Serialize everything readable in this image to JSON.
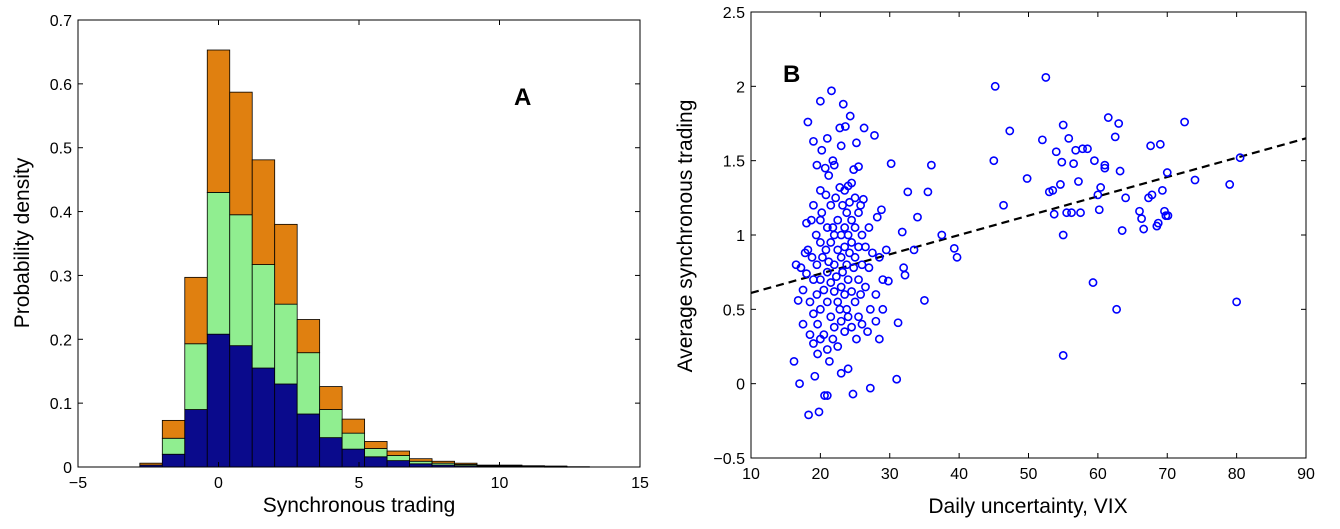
{
  "colors": {
    "bottom": "#0a0a8c",
    "middle": "#90ee90",
    "top": "#e08010",
    "scatter": "#0000ff",
    "fit_line": "#000000"
  },
  "chart_data": [
    {
      "type": "bar",
      "stacked": true,
      "panel_label": "A",
      "title": "",
      "xlabel": "Synchronous trading",
      "ylabel": "Probability density",
      "xlim": [
        -5,
        15
      ],
      "ylim": [
        0,
        0.7
      ],
      "xticks": [
        -5,
        0,
        5,
        10,
        15
      ],
      "yticks": [
        0,
        0.1,
        0.2,
        0.3,
        0.4,
        0.5,
        0.6,
        0.7
      ],
      "bar_width": 0.8,
      "grid": false,
      "x": [
        -2.4,
        -1.6,
        -0.8,
        0,
        0.8,
        1.6,
        2.4,
        3.2,
        4.0,
        4.8,
        5.6,
        6.4,
        7.2,
        8.0,
        8.8,
        9.6,
        10.4,
        11.2,
        12.0,
        12.8
      ],
      "series": [
        {
          "color_key": "bottom",
          "values": [
            0.003,
            0.02,
            0.09,
            0.208,
            0.19,
            0.155,
            0.13,
            0.083,
            0.046,
            0.028,
            0.016,
            0.01,
            0.005,
            0.003,
            0.002,
            0.001,
            0.001,
            0.001,
            0.0005,
            0.0005
          ]
        },
        {
          "color_key": "middle",
          "values": [
            0.0,
            0.025,
            0.103,
            0.222,
            0.205,
            0.162,
            0.125,
            0.096,
            0.044,
            0.025,
            0.013,
            0.008,
            0.004,
            0.003,
            0.002,
            0.001,
            0.001,
            0.0005,
            0.0005,
            0.0
          ]
        },
        {
          "color_key": "top",
          "values": [
            0.003,
            0.028,
            0.104,
            0.223,
            0.192,
            0.164,
            0.125,
            0.052,
            0.036,
            0.022,
            0.011,
            0.007,
            0.004,
            0.003,
            0.002,
            0.001,
            0.001,
            0.0005,
            0.0005,
            0.0
          ]
        }
      ]
    },
    {
      "type": "scatter",
      "panel_label": "B",
      "title": "",
      "xlabel": "Daily uncertainty, VIX",
      "ylabel": "Average synchronous trading",
      "xlim": [
        10,
        90
      ],
      "ylim": [
        -0.5,
        2.5
      ],
      "xticks": [
        10,
        20,
        30,
        40,
        50,
        60,
        70,
        80,
        90
      ],
      "yticks": [
        -0.5,
        0,
        0.5,
        1,
        1.5,
        2,
        2.5
      ],
      "grid": false,
      "fit_line": {
        "style": "dashed",
        "x": [
          10,
          90
        ],
        "y": [
          0.61,
          1.65
        ]
      },
      "points": [
        [
          16.2,
          0.15
        ],
        [
          16.5,
          0.8
        ],
        [
          16.8,
          0.56
        ],
        [
          17.0,
          0.0
        ],
        [
          17.2,
          0.78
        ],
        [
          17.5,
          0.63
        ],
        [
          17.5,
          0.4
        ],
        [
          17.8,
          0.88
        ],
        [
          18.0,
          1.08
        ],
        [
          18.0,
          0.74
        ],
        [
          18.2,
          1.76
        ],
        [
          18.2,
          0.9
        ],
        [
          18.3,
          -0.21
        ],
        [
          18.5,
          0.55
        ],
        [
          18.5,
          0.33
        ],
        [
          18.7,
          1.1
        ],
        [
          18.8,
          0.85
        ],
        [
          19.0,
          1.63
        ],
        [
          19.0,
          1.2
        ],
        [
          19.0,
          0.7
        ],
        [
          19.0,
          0.47
        ],
        [
          19.0,
          0.27
        ],
        [
          19.2,
          0.05
        ],
        [
          19.4,
          1.0
        ],
        [
          19.5,
          1.47
        ],
        [
          19.5,
          0.8
        ],
        [
          19.5,
          0.6
        ],
        [
          19.6,
          0.4
        ],
        [
          19.6,
          0.2
        ],
        [
          19.8,
          -0.19
        ],
        [
          20.0,
          1.9
        ],
        [
          20.0,
          1.3
        ],
        [
          20.0,
          1.1
        ],
        [
          20.0,
          0.95
        ],
        [
          20.0,
          0.7
        ],
        [
          20.0,
          0.5
        ],
        [
          20.0,
          0.3
        ],
        [
          20.2,
          1.57
        ],
        [
          20.2,
          1.15
        ],
        [
          20.3,
          0.85
        ],
        [
          20.5,
          0.63
        ],
        [
          20.5,
          0.33
        ],
        [
          20.6,
          -0.08
        ],
        [
          20.7,
          1.45
        ],
        [
          20.8,
          1.27
        ],
        [
          20.8,
          0.9
        ],
        [
          21.0,
          1.65
        ],
        [
          21.0,
          1.05
        ],
        [
          21.0,
          0.75
        ],
        [
          21.0,
          0.55
        ],
        [
          21.0,
          0.23
        ],
        [
          21.0,
          -0.08
        ],
        [
          21.2,
          1.4
        ],
        [
          21.2,
          0.82
        ],
        [
          21.3,
          0.15
        ],
        [
          21.5,
          1.2
        ],
        [
          21.5,
          0.95
        ],
        [
          21.5,
          0.68
        ],
        [
          21.5,
          0.45
        ],
        [
          21.6,
          1.97
        ],
        [
          21.8,
          1.5
        ],
        [
          21.8,
          1.05
        ],
        [
          21.8,
          0.3
        ],
        [
          22.0,
          1.47
        ],
        [
          22.0,
          1.0
        ],
        [
          22.0,
          0.8
        ],
        [
          22.0,
          0.62
        ],
        [
          22.0,
          0.38
        ],
        [
          22.2,
          1.25
        ],
        [
          22.3,
          0.72
        ],
        [
          22.5,
          1.1
        ],
        [
          22.5,
          0.9
        ],
        [
          22.5,
          0.55
        ],
        [
          22.5,
          0.25
        ],
        [
          22.8,
          1.72
        ],
        [
          22.8,
          1.32
        ],
        [
          22.8,
          0.5
        ],
        [
          23.0,
          1.6
        ],
        [
          23.0,
          1.0
        ],
        [
          23.0,
          0.85
        ],
        [
          23.0,
          0.65
        ],
        [
          23.0,
          0.42
        ],
        [
          23.0,
          0.07
        ],
        [
          23.2,
          1.2
        ],
        [
          23.2,
          0.75
        ],
        [
          23.3,
          1.88
        ],
        [
          23.5,
          1.3
        ],
        [
          23.5,
          1.05
        ],
        [
          23.5,
          0.92
        ],
        [
          23.5,
          0.6
        ],
        [
          23.5,
          0.35
        ],
        [
          23.6,
          1.73
        ],
        [
          23.8,
          1.15
        ],
        [
          23.8,
          0.8
        ],
        [
          23.8,
          0.5
        ],
        [
          24.0,
          1.33
        ],
        [
          24.0,
          1.0
        ],
        [
          24.0,
          0.7
        ],
        [
          24.0,
          0.45
        ],
        [
          24.0,
          0.1
        ],
        [
          24.2,
          1.22
        ],
        [
          24.2,
          0.88
        ],
        [
          24.3,
          1.8
        ],
        [
          24.5,
          1.35
        ],
        [
          24.5,
          1.1
        ],
        [
          24.5,
          0.95
        ],
        [
          24.5,
          0.62
        ],
        [
          24.5,
          0.38
        ],
        [
          24.7,
          -0.07
        ],
        [
          24.8,
          1.44
        ],
        [
          24.8,
          0.78
        ],
        [
          25.0,
          1.25
        ],
        [
          25.0,
          1.05
        ],
        [
          25.0,
          0.85
        ],
        [
          25.0,
          0.55
        ],
        [
          25.2,
          1.62
        ],
        [
          25.2,
          0.3
        ],
        [
          25.5,
          1.46
        ],
        [
          25.5,
          1.15
        ],
        [
          25.5,
          0.92
        ],
        [
          25.5,
          0.7
        ],
        [
          25.5,
          0.45
        ],
        [
          25.8,
          1.2
        ],
        [
          25.8,
          0.6
        ],
        [
          26.0,
          1.0
        ],
        [
          26.0,
          0.8
        ],
        [
          26.0,
          0.4
        ],
        [
          26.2,
          1.24
        ],
        [
          26.3,
          1.72
        ],
        [
          26.5,
          0.92
        ],
        [
          26.5,
          0.65
        ],
        [
          26.8,
          0.35
        ],
        [
          27.0,
          1.05
        ],
        [
          27.0,
          0.78
        ],
        [
          27.2,
          0.5
        ],
        [
          27.2,
          -0.03
        ],
        [
          27.5,
          0.88
        ],
        [
          27.8,
          1.67
        ],
        [
          28.0,
          0.6
        ],
        [
          28.0,
          0.42
        ],
        [
          28.2,
          1.12
        ],
        [
          28.5,
          0.85
        ],
        [
          28.5,
          0.3
        ],
        [
          28.8,
          1.17
        ],
        [
          29.0,
          0.7
        ],
        [
          29.0,
          0.5
        ],
        [
          29.5,
          0.9
        ],
        [
          29.8,
          0.69
        ],
        [
          30.2,
          1.48
        ],
        [
          31.0,
          0.03
        ],
        [
          31.2,
          0.41
        ],
        [
          31.8,
          1.02
        ],
        [
          32.0,
          0.78
        ],
        [
          32.2,
          0.73
        ],
        [
          32.6,
          1.29
        ],
        [
          33.5,
          0.9
        ],
        [
          34.0,
          1.12
        ],
        [
          35.0,
          0.56
        ],
        [
          35.5,
          1.29
        ],
        [
          36.0,
          1.47
        ],
        [
          37.5,
          1.0
        ],
        [
          39.3,
          0.91
        ],
        [
          39.7,
          0.85
        ],
        [
          45.0,
          1.5
        ],
        [
          45.2,
          2.0
        ],
        [
          46.4,
          1.2
        ],
        [
          47.3,
          1.7
        ],
        [
          49.8,
          1.38
        ],
        [
          52.0,
          1.64
        ],
        [
          52.5,
          2.06
        ],
        [
          53.0,
          1.29
        ],
        [
          53.5,
          1.3
        ],
        [
          53.7,
          1.14
        ],
        [
          54.0,
          1.56
        ],
        [
          54.6,
          1.34
        ],
        [
          54.8,
          1.49
        ],
        [
          55.0,
          1.74
        ],
        [
          55.0,
          1.0
        ],
        [
          55.0,
          0.19
        ],
        [
          55.5,
          1.15
        ],
        [
          55.8,
          1.65
        ],
        [
          56.2,
          1.15
        ],
        [
          56.5,
          1.48
        ],
        [
          56.8,
          1.57
        ],
        [
          57.2,
          1.36
        ],
        [
          57.5,
          1.15
        ],
        [
          57.8,
          1.58
        ],
        [
          58.5,
          1.58
        ],
        [
          59.3,
          0.68
        ],
        [
          59.5,
          1.5
        ],
        [
          60.0,
          1.27
        ],
        [
          60.2,
          1.17
        ],
        [
          60.4,
          1.32
        ],
        [
          61.0,
          1.45
        ],
        [
          61.0,
          1.47
        ],
        [
          61.5,
          1.79
        ],
        [
          62.5,
          1.66
        ],
        [
          62.7,
          0.5
        ],
        [
          63.0,
          1.75
        ],
        [
          63.2,
          1.43
        ],
        [
          63.5,
          1.03
        ],
        [
          64.0,
          1.25
        ],
        [
          66.0,
          1.16
        ],
        [
          66.3,
          1.11
        ],
        [
          66.6,
          1.04
        ],
        [
          67.3,
          1.25
        ],
        [
          67.6,
          1.6
        ],
        [
          67.8,
          1.27
        ],
        [
          68.5,
          1.06
        ],
        [
          68.7,
          1.08
        ],
        [
          69.0,
          1.61
        ],
        [
          69.3,
          1.3
        ],
        [
          69.6,
          1.16
        ],
        [
          69.8,
          1.13
        ],
        [
          70.0,
          1.42
        ],
        [
          70.1,
          1.13
        ],
        [
          72.5,
          1.76
        ],
        [
          74.0,
          1.37
        ],
        [
          79.0,
          1.34
        ],
        [
          80.0,
          0.55
        ],
        [
          80.5,
          1.52
        ]
      ]
    }
  ]
}
